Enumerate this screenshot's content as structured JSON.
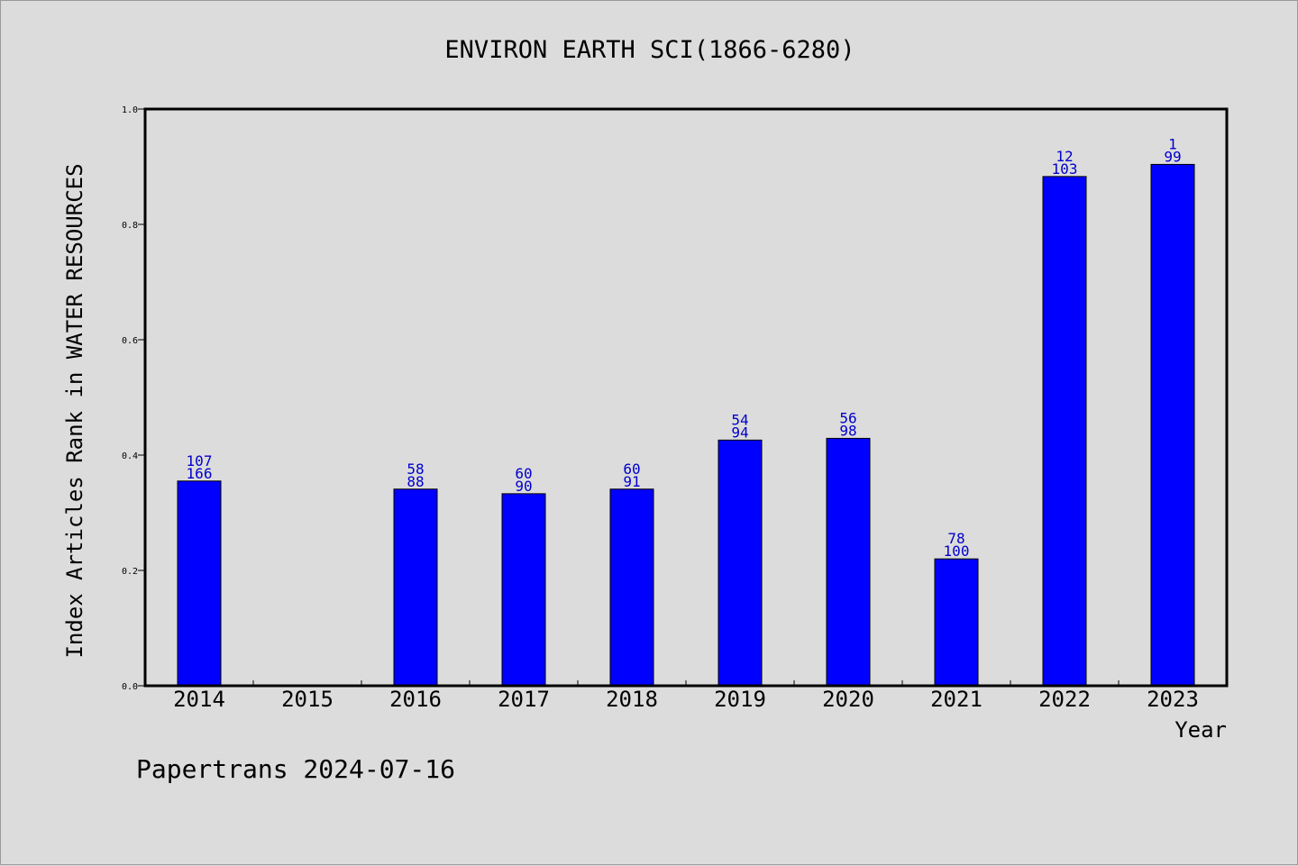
{
  "chart_data": {
    "type": "bar",
    "title": "ENVIRON EARTH SCI(1866-6280)",
    "xlabel": "Year",
    "ylabel": "Index Articles Rank in WATER RESOURCES",
    "ylim": [
      0,
      1.0
    ],
    "yticks": [
      "0.0",
      "0.2",
      "0.4",
      "0.6",
      "0.8",
      "1.0"
    ],
    "grid": false,
    "bar_color": "#0000ff",
    "label_color": "#0000cc",
    "categories": [
      "2014",
      "2015",
      "2016",
      "2017",
      "2018",
      "2019",
      "2020",
      "2021",
      "2022",
      "2023"
    ],
    "values": [
      0.355,
      null,
      0.341,
      0.333,
      0.341,
      0.426,
      0.429,
      0.22,
      0.883,
      0.904
    ],
    "label_top": [
      "107",
      "",
      "58",
      "60",
      "60",
      "54",
      "56",
      "78",
      "12",
      "1"
    ],
    "label_bottom": [
      "166",
      "",
      "88",
      "90",
      "91",
      "94",
      "98",
      "100",
      "103",
      "99"
    ]
  },
  "footer": "Papertrans 2024-07-16"
}
